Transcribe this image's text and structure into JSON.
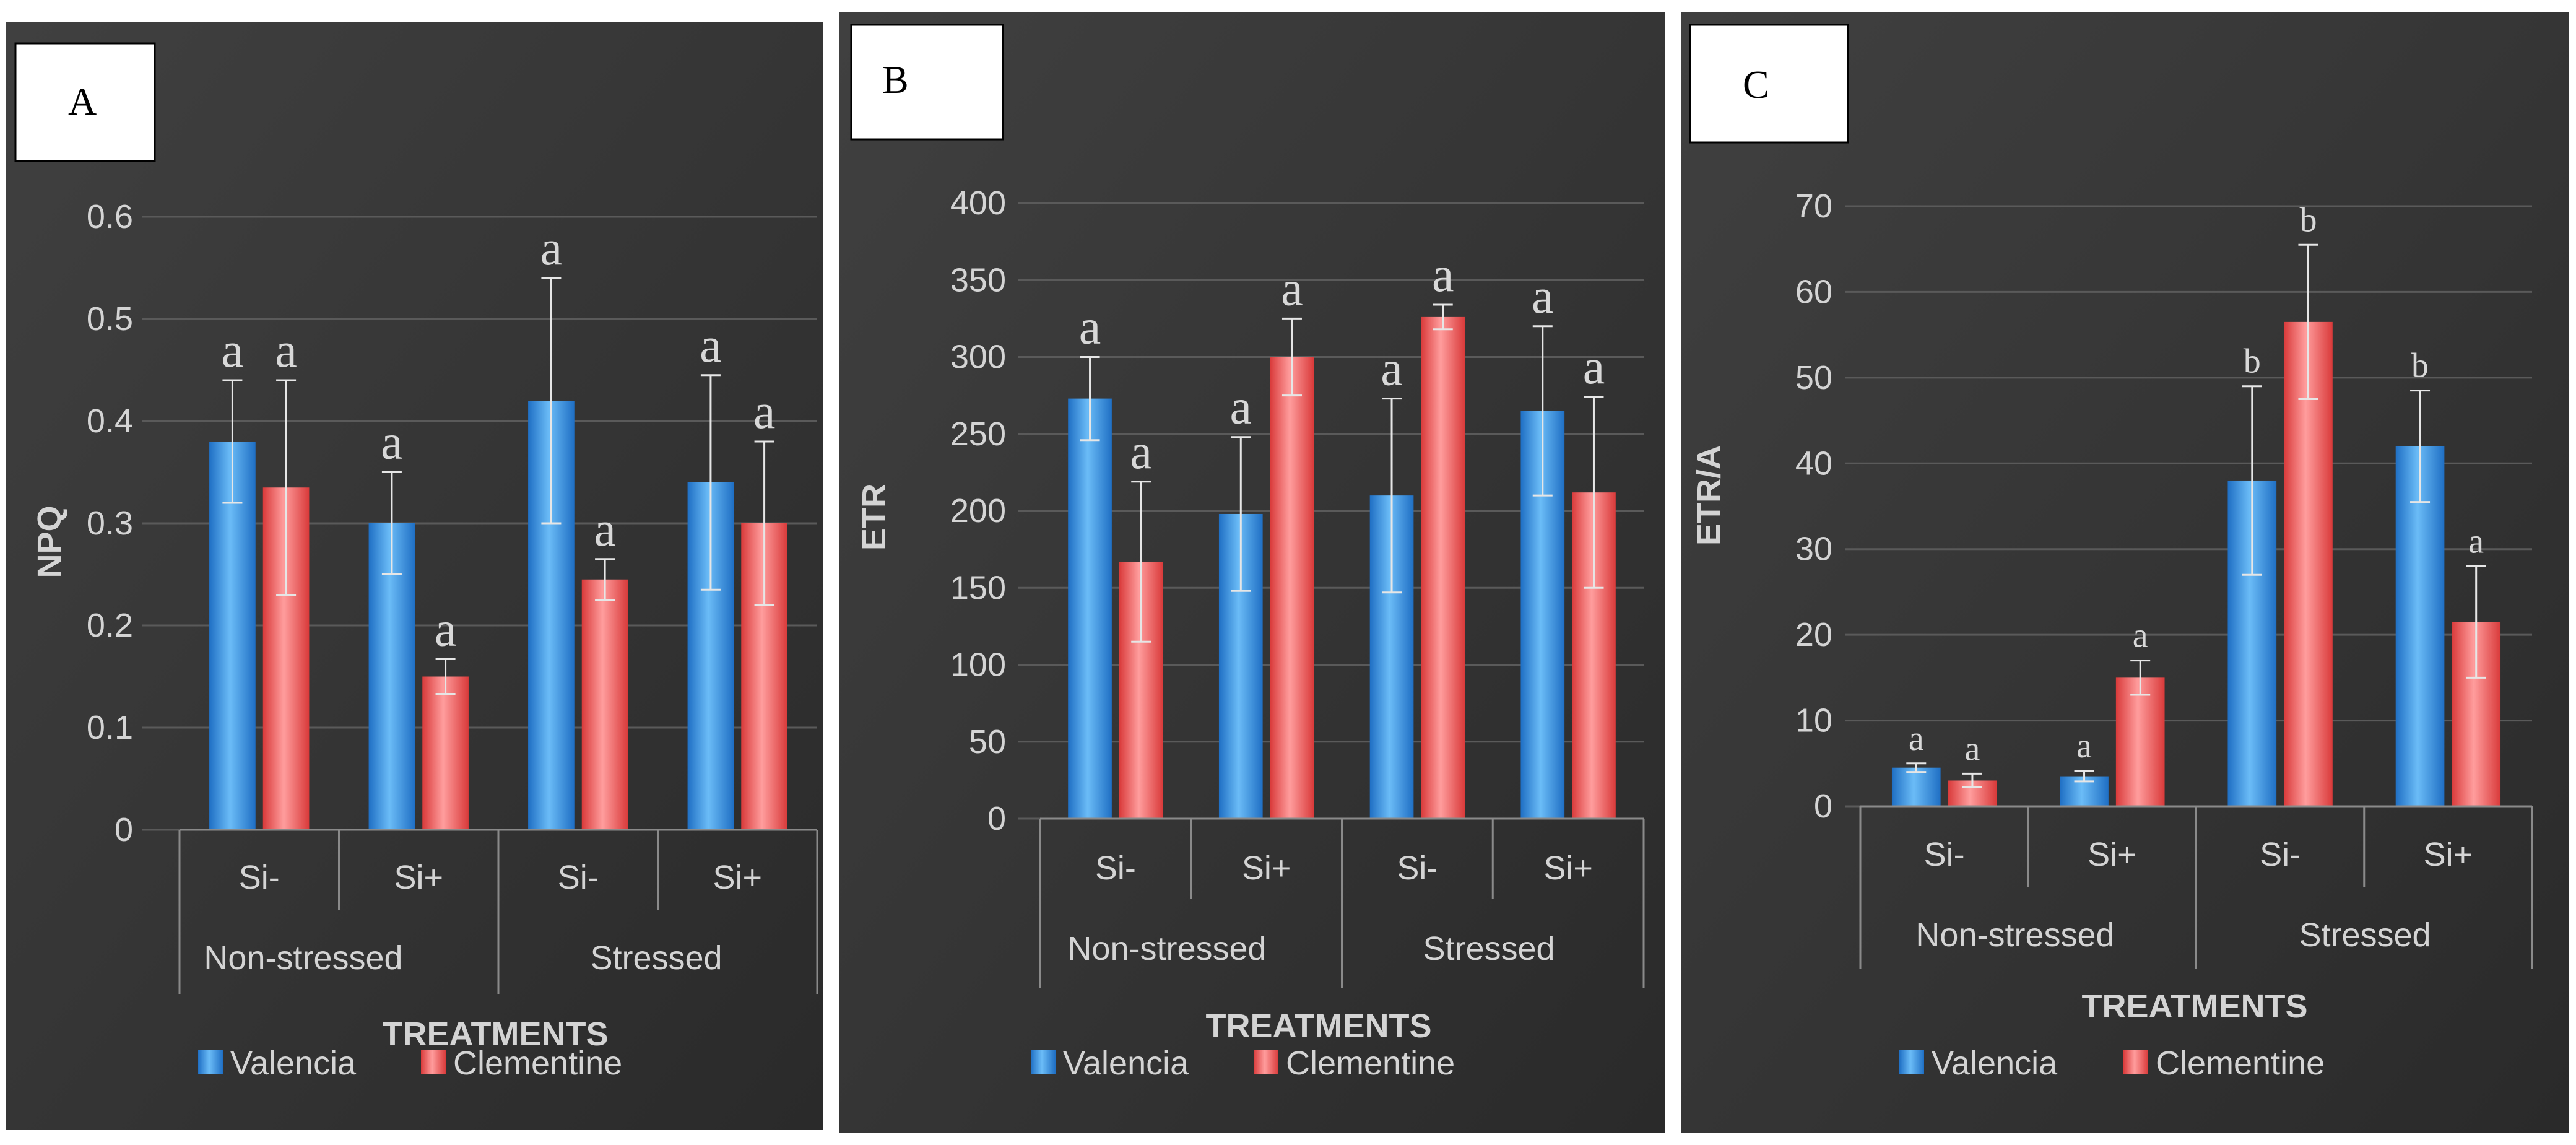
{
  "figure": {
    "colors": {
      "valencia": "#4aa3ea",
      "clementine": "#f26a6a",
      "panel_background": "#3a3a3a",
      "grid": "#5a5a5a",
      "text": "#d4d4d4",
      "sig_letter": "#d8d8d8",
      "label_box_bg": "#ffffff",
      "label_box_text": "#000000"
    }
  },
  "chart_data": [
    {
      "type": "bar",
      "panel_label": "A",
      "ylabel": "NPQ",
      "xlabel": "TREATMENTS",
      "ylim": [
        0,
        0.6
      ],
      "yticks": [
        0,
        0.1,
        0.2,
        0.3,
        0.4,
        0.5,
        0.6
      ],
      "ytick_labels": [
        "0",
        "0.1",
        "0.2",
        "0.3",
        "0.4",
        "0.5",
        "0.6"
      ],
      "grid": true,
      "groups": [
        {
          "label": "Non-stressed",
          "categories": [
            "Si-",
            "Si+"
          ]
        },
        {
          "label": "Stressed",
          "categories": [
            "Si-",
            "Si+"
          ]
        }
      ],
      "categories": [
        "Si-",
        "Si+",
        "Si-",
        "Si+"
      ],
      "series": [
        {
          "name": "Valencia",
          "values": [
            0.38,
            0.3,
            0.42,
            0.34
          ],
          "errors": [
            0.06,
            0.05,
            0.12,
            0.105
          ],
          "sig": [
            "a",
            "a",
            "a",
            "a"
          ]
        },
        {
          "name": "Clementine",
          "values": [
            0.335,
            0.15,
            0.245,
            0.3
          ],
          "errors": [
            0.105,
            0.017,
            0.02,
            0.08
          ],
          "sig": [
            "a",
            "a",
            "a",
            "a"
          ]
        }
      ],
      "legend": [
        "Valencia",
        "Clementine"
      ]
    },
    {
      "type": "bar",
      "panel_label": "B",
      "ylabel": "ETR",
      "xlabel": "TREATMENTS",
      "ylim": [
        0,
        400
      ],
      "yticks": [
        0,
        50,
        100,
        150,
        200,
        250,
        300,
        350,
        400
      ],
      "ytick_labels": [
        "0",
        "50",
        "100",
        "150",
        "200",
        "250",
        "300",
        "350",
        "400"
      ],
      "grid": true,
      "groups": [
        {
          "label": "Non-stressed",
          "categories": [
            "Si-",
            "Si+"
          ]
        },
        {
          "label": "Stressed",
          "categories": [
            "Si-",
            "Si+"
          ]
        }
      ],
      "categories": [
        "Si-",
        "Si+",
        "Si-",
        "Si+"
      ],
      "series": [
        {
          "name": "Valencia",
          "values": [
            273,
            198,
            210,
            265
          ],
          "errors": [
            27,
            50,
            63,
            55
          ],
          "sig": [
            "a",
            "a",
            "a",
            "a"
          ]
        },
        {
          "name": "Clementine",
          "values": [
            167,
            300,
            326,
            212
          ],
          "errors": [
            52,
            25,
            8,
            62
          ],
          "sig": [
            "a",
            "a",
            "a",
            "a"
          ]
        }
      ],
      "legend": [
        "Valencia",
        "Clementine"
      ]
    },
    {
      "type": "bar",
      "panel_label": "C",
      "ylabel": "ETR/A",
      "xlabel": "TREATMENTS",
      "ylim": [
        0,
        70
      ],
      "yticks": [
        0,
        10,
        20,
        30,
        40,
        50,
        60,
        70
      ],
      "ytick_labels": [
        "0",
        "10",
        "20",
        "30",
        "40",
        "50",
        "60",
        "70"
      ],
      "grid": true,
      "groups": [
        {
          "label": "Non-stressed",
          "categories": [
            "Si-",
            "Si+"
          ]
        },
        {
          "label": "Stressed",
          "categories": [
            "Si-",
            "Si+"
          ]
        }
      ],
      "categories": [
        "Si-",
        "Si+",
        "Si-",
        "Si+"
      ],
      "series": [
        {
          "name": "Valencia",
          "values": [
            4.5,
            3.5,
            38,
            42
          ],
          "errors": [
            0.5,
            0.6,
            11,
            6.5
          ],
          "sig": [
            "a",
            "a",
            "b",
            "b"
          ]
        },
        {
          "name": "Clementine",
          "values": [
            3,
            15,
            56.5,
            21.5
          ],
          "errors": [
            0.8,
            2,
            9,
            6.5
          ],
          "sig": [
            "a",
            "a",
            "b",
            "a"
          ]
        }
      ],
      "legend": [
        "Valencia",
        "Clementine"
      ]
    }
  ]
}
